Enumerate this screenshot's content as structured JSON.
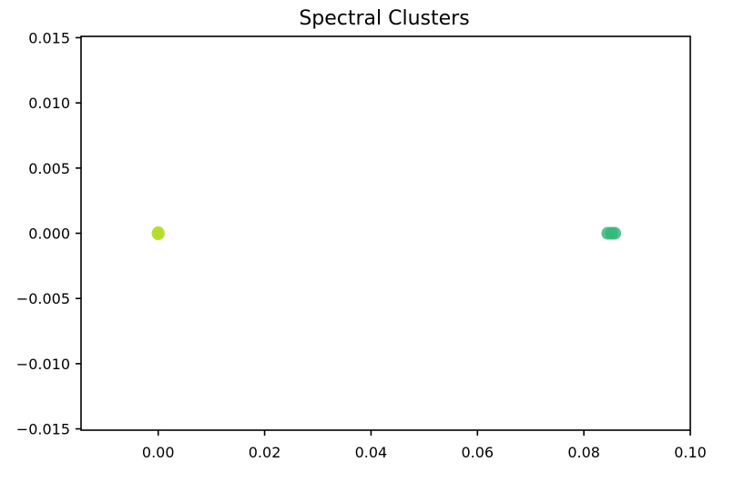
{
  "chart_data": {
    "type": "scatter",
    "title": "Spectral Clusters",
    "xlabel": "",
    "ylabel": "",
    "xlim": [
      -0.0145,
      0.1
    ],
    "ylim": [
      -0.0151,
      0.0151
    ],
    "xticks": [
      0.0,
      0.02,
      0.04,
      0.06,
      0.08,
      0.1
    ],
    "xtick_labels": [
      "0.00",
      "0.02",
      "0.04",
      "0.06",
      "0.08",
      "0.10"
    ],
    "yticks": [
      0.015,
      0.01,
      0.005,
      0.0,
      -0.005,
      -0.01,
      -0.015
    ],
    "ytick_labels": [
      "0.015",
      "0.010",
      "0.005",
      "0.000",
      "−0.005",
      "−0.010",
      "−0.015"
    ],
    "grid": false,
    "series": [
      {
        "color": "#b5de2b",
        "points": [
          [
            0.0,
            0.0
          ],
          [
            0.0,
            5e-05
          ],
          [
            0.0,
            -5e-05
          ]
        ]
      },
      {
        "color": "#35b779",
        "points": [
          [
            0.0845,
            0.0
          ],
          [
            0.0852,
            0.0
          ],
          [
            0.0858,
            0.0
          ]
        ]
      }
    ]
  }
}
